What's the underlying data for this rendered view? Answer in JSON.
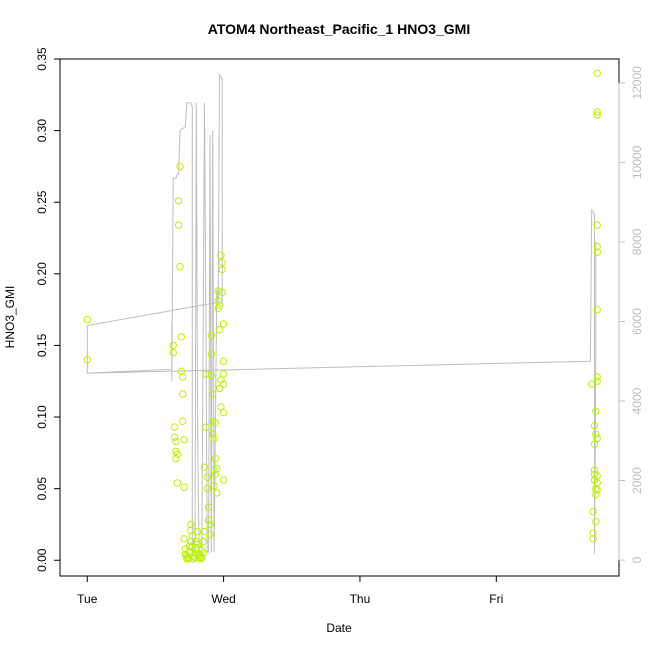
{
  "chart_data": {
    "type": "scatter",
    "title": "ATOM4 Northeast_Pacific_1 HNO3_GMI",
    "xlabel": "Date",
    "ylabel": "HNO3_GMI",
    "x_unit": "days since Tue 00:00",
    "x_ticks": [
      {
        "label": "Tue",
        "value": 0
      },
      {
        "label": "Wed",
        "value": 1
      },
      {
        "label": "Thu",
        "value": 2
      },
      {
        "label": "Fri",
        "value": 3
      }
    ],
    "xlim": [
      -0.2,
      3.9
    ],
    "ylim": [
      -0.011,
      0.35
    ],
    "y_ticks": [
      "0.00",
      "0.05",
      "0.10",
      "0.15",
      "0.20",
      "0.25",
      "0.30",
      "0.35"
    ],
    "right_axis": {
      "ylim": [
        -400,
        12600
      ],
      "ticks": [
        "0",
        "2000",
        "4000",
        "6000",
        "8000",
        "10000",
        "12000"
      ],
      "color": "#bdbdbd"
    },
    "colors": {
      "points": "#b8f200",
      "line": "#bdbdbd",
      "axes": "#000000"
    },
    "grid": false,
    "series": [
      {
        "type": "scatter",
        "points": [
          [
            0.0,
            0.168
          ],
          [
            0.0,
            0.14
          ],
          [
            0.63,
            0.15
          ],
          [
            0.63,
            0.145
          ],
          [
            0.64,
            0.093
          ],
          [
            0.64,
            0.086
          ],
          [
            0.65,
            0.083
          ],
          [
            0.65,
            0.076
          ],
          [
            0.65,
            0.071
          ],
          [
            0.66,
            0.074
          ],
          [
            0.66,
            0.054
          ],
          [
            0.67,
            0.234
          ],
          [
            0.67,
            0.251
          ],
          [
            0.68,
            0.275
          ],
          [
            0.68,
            0.205
          ],
          [
            0.69,
            0.156
          ],
          [
            0.69,
            0.132
          ],
          [
            0.7,
            0.128
          ],
          [
            0.7,
            0.116
          ],
          [
            0.7,
            0.097
          ],
          [
            0.71,
            0.084
          ],
          [
            0.71,
            0.051
          ],
          [
            0.71,
            0.015
          ],
          [
            0.72,
            0.008
          ],
          [
            0.72,
            0.004
          ],
          [
            0.73,
            0.001
          ],
          [
            0.73,
            0.003
          ],
          [
            0.74,
            0.001
          ],
          [
            0.74,
            0.002
          ],
          [
            0.75,
            0.006
          ],
          [
            0.75,
            0.01
          ],
          [
            0.76,
            0.013
          ],
          [
            0.76,
            0.021
          ],
          [
            0.76,
            0.025
          ],
          [
            0.77,
            0.017
          ],
          [
            0.77,
            0.009
          ],
          [
            0.78,
            0.003
          ],
          [
            0.78,
            0.001
          ],
          [
            0.79,
            0.002
          ],
          [
            0.79,
            0.005
          ],
          [
            0.8,
            0.008
          ],
          [
            0.8,
            0.013
          ],
          [
            0.81,
            0.02
          ],
          [
            0.81,
            0.011
          ],
          [
            0.82,
            0.004
          ],
          [
            0.82,
            0.002
          ],
          [
            0.83,
            0.001
          ],
          [
            0.83,
            0.003
          ],
          [
            0.84,
            0.007
          ],
          [
            0.84,
            0.002
          ],
          [
            0.85,
            0.005
          ],
          [
            0.85,
            0.013
          ],
          [
            0.86,
            0.02
          ],
          [
            0.86,
            0.065
          ],
          [
            0.87,
            0.13
          ],
          [
            0.87,
            0.093
          ],
          [
            0.88,
            0.05
          ],
          [
            0.88,
            0.058
          ],
          [
            0.89,
            0.037
          ],
          [
            0.89,
            0.028
          ],
          [
            0.9,
            0.025
          ],
          [
            0.9,
            0.018
          ],
          [
            0.91,
            0.129
          ],
          [
            0.91,
            0.157
          ],
          [
            0.91,
            0.144
          ],
          [
            0.92,
            0.116
          ],
          [
            0.92,
            0.097
          ],
          [
            0.92,
            0.088
          ],
          [
            0.93,
            0.085
          ],
          [
            0.93,
            0.063
          ],
          [
            0.93,
            0.052
          ],
          [
            0.94,
            0.096
          ],
          [
            0.94,
            0.071
          ],
          [
            0.94,
            0.06
          ],
          [
            0.95,
            0.064
          ],
          [
            0.95,
            0.047
          ],
          [
            0.96,
            0.176
          ],
          [
            0.96,
            0.181
          ],
          [
            0.96,
            0.188
          ],
          [
            0.97,
            0.161
          ],
          [
            0.97,
            0.178
          ],
          [
            0.97,
            0.12
          ],
          [
            0.98,
            0.126
          ],
          [
            0.98,
            0.107
          ],
          [
            0.98,
            0.213
          ],
          [
            0.99,
            0.208
          ],
          [
            0.99,
            0.203
          ],
          [
            0.99,
            0.187
          ],
          [
            1.0,
            0.165
          ],
          [
            1.0,
            0.139
          ],
          [
            1.0,
            0.13
          ],
          [
            1.0,
            0.123
          ],
          [
            1.0,
            0.103
          ],
          [
            1.0,
            0.056
          ],
          [
            3.7,
            0.123
          ],
          [
            3.71,
            0.034
          ],
          [
            3.71,
            0.019
          ],
          [
            3.71,
            0.015
          ],
          [
            3.72,
            0.094
          ],
          [
            3.72,
            0.081
          ],
          [
            3.72,
            0.063
          ],
          [
            3.72,
            0.06
          ],
          [
            3.72,
            0.056
          ],
          [
            3.73,
            0.104
          ],
          [
            3.73,
            0.088
          ],
          [
            3.73,
            0.05
          ],
          [
            3.73,
            0.046
          ],
          [
            3.73,
            0.027
          ],
          [
            3.74,
            0.34
          ],
          [
            3.74,
            0.313
          ],
          [
            3.74,
            0.311
          ],
          [
            3.74,
            0.234
          ],
          [
            3.74,
            0.219
          ],
          [
            3.74,
            0.215
          ],
          [
            3.74,
            0.175
          ],
          [
            3.74,
            0.125
          ],
          [
            3.74,
            0.128
          ],
          [
            3.74,
            0.085
          ],
          [
            3.74,
            0.059
          ],
          [
            3.74,
            0.054
          ],
          [
            3.74,
            0.049
          ]
        ]
      },
      {
        "type": "line",
        "axis": "right",
        "points": [
          [
            0.0,
            5900
          ],
          [
            0.0,
            4700
          ],
          [
            0.62,
            4800
          ],
          [
            0.62,
            6000
          ],
          [
            0.62,
            4500
          ],
          [
            0.63,
            9600
          ],
          [
            0.65,
            9600
          ],
          [
            0.66,
            9700
          ],
          [
            0.67,
            9700
          ],
          [
            0.68,
            10800
          ],
          [
            0.72,
            10900
          ],
          [
            0.73,
            11500
          ],
          [
            0.76,
            11500
          ],
          [
            0.77,
            11400
          ],
          [
            0.77,
            200
          ],
          [
            0.79,
            200
          ],
          [
            0.8,
            11500
          ],
          [
            0.81,
            3000
          ],
          [
            0.82,
            200
          ],
          [
            0.84,
            200
          ],
          [
            0.86,
            11500
          ],
          [
            0.87,
            6000
          ],
          [
            0.88,
            200
          ],
          [
            0.89,
            200
          ],
          [
            0.9,
            10700
          ],
          [
            0.91,
            200
          ],
          [
            0.92,
            10800
          ],
          [
            0.93,
            200
          ],
          [
            0.95,
            6800
          ],
          [
            0.96,
            6500
          ],
          [
            0.97,
            12200
          ],
          [
            0.99,
            12100
          ],
          [
            0.99,
            6500
          ],
          [
            0.0,
            5900
          ],
          [
            0.0,
            4700
          ],
          [
            3.69,
            5000
          ],
          [
            3.7,
            8800
          ],
          [
            3.72,
            8700
          ],
          [
            3.72,
            150
          ],
          [
            3.73,
            5200
          ],
          [
            3.73,
            8000
          ]
        ]
      }
    ]
  }
}
